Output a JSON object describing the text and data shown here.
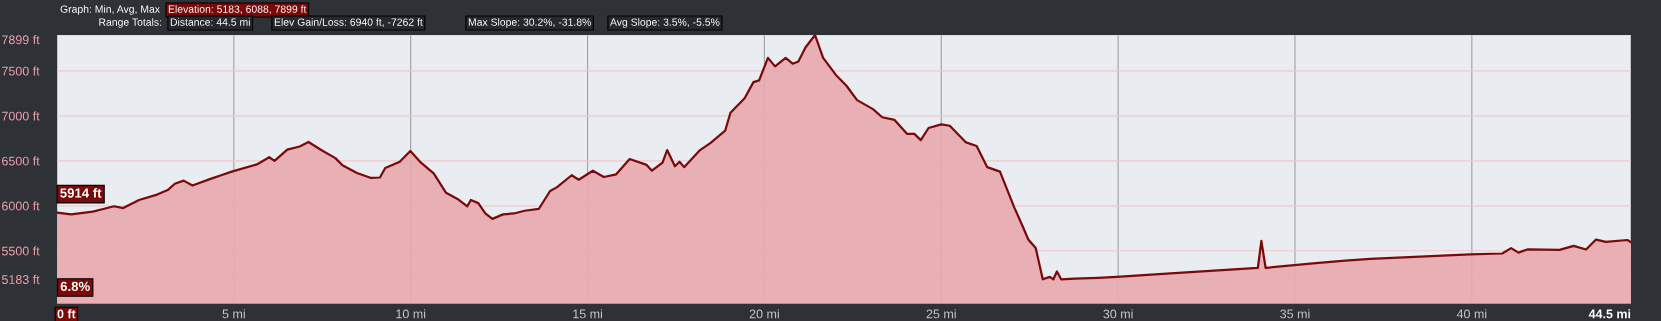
{
  "chart_data": {
    "type": "area",
    "x": [
      0,
      0.4,
      1.01,
      1.31,
      1.61,
      1.87,
      2.32,
      2.83,
      3.13,
      3.33,
      3.58,
      3.83,
      4.34,
      4.64,
      4.94,
      5.65,
      6.0,
      6.15,
      6.51,
      6.86,
      7.11,
      7.47,
      7.87,
      8.07,
      8.48,
      8.88,
      9.13,
      9.28,
      9.69,
      9.99,
      10.29,
      10.65,
      11.0,
      11.35,
      11.6,
      11.7,
      11.91,
      12.11,
      12.31,
      12.61,
      12.92,
      13.22,
      13.62,
      13.94,
      14.13,
      14.55,
      14.75,
      15.15,
      15.46,
      15.81,
      16.19,
      16.67,
      16.82,
      17.12,
      17.25,
      17.47,
      17.6,
      17.73,
      18.18,
      18.48,
      18.89,
      19.04,
      19.24,
      19.44,
      19.69,
      19.85,
      20.1,
      20.3,
      20.6,
      20.8,
      20.96,
      21.16,
      21.43,
      21.66,
      22.02,
      22.32,
      22.62,
      23.07,
      23.33,
      23.68,
      24.03,
      24.24,
      24.42,
      24.64,
      25.0,
      25.24,
      25.7,
      26.0,
      26.3,
      26.66,
      27.06,
      27.31,
      27.46,
      27.67,
      27.87,
      28.07,
      28.17,
      28.27,
      28.39,
      28.77,
      29.43,
      29.96,
      31.48,
      33.5,
      33.95,
      34.05,
      34.17,
      35.51,
      36.42,
      37.13,
      38.54,
      39.95,
      40.86,
      41.11,
      41.32,
      41.57,
      42.48,
      42.88,
      43.23,
      43.51,
      43.79,
      44.4,
      44.5
    ],
    "series": [
      {
        "color": "#7a0a0a",
        "values": [
          5925,
          5905,
          5935,
          5965,
          5995,
          5975,
          6065,
          6125,
          6175,
          6245,
          6280,
          6225,
          6300,
          6340,
          6380,
          6460,
          6540,
          6500,
          6625,
          6660,
          6710,
          6620,
          6530,
          6450,
          6365,
          6310,
          6315,
          6420,
          6490,
          6610,
          6480,
          6360,
          6145,
          6070,
          5995,
          6065,
          6030,
          5915,
          5855,
          5905,
          5915,
          5945,
          5965,
          6165,
          6205,
          6340,
          6290,
          6390,
          6320,
          6350,
          6520,
          6455,
          6390,
          6480,
          6620,
          6440,
          6490,
          6430,
          6620,
          6700,
          6835,
          7035,
          7115,
          7195,
          7375,
          7395,
          7645,
          7550,
          7645,
          7580,
          7605,
          7760,
          7899,
          7645,
          7455,
          7335,
          7175,
          7075,
          6985,
          6955,
          6800,
          6800,
          6730,
          6865,
          6905,
          6890,
          6705,
          6665,
          6430,
          6380,
          5985,
          5765,
          5625,
          5530,
          5183,
          5210,
          5183,
          5270,
          5183,
          5190,
          5200,
          5210,
          5250,
          5300,
          5310,
          5610,
          5310,
          5360,
          5390,
          5410,
          5435,
          5460,
          5470,
          5530,
          5480,
          5515,
          5510,
          5555,
          5515,
          5625,
          5600,
          5620,
          5595
        ]
      }
    ],
    "xlim": [
      0,
      44.5
    ],
    "ylim": [
      4913,
      7899
    ],
    "xticks": [
      {
        "value": 0,
        "label": "0 ft"
      },
      {
        "value": 5,
        "label": "5 mi"
      },
      {
        "value": 10,
        "label": "10 mi"
      },
      {
        "value": 15,
        "label": "15 mi"
      },
      {
        "value": 20,
        "label": "20 mi"
      },
      {
        "value": 25,
        "label": "25 mi"
      },
      {
        "value": 30,
        "label": "30 mi"
      },
      {
        "value": 35,
        "label": "35 mi"
      },
      {
        "value": 40,
        "label": "40 mi"
      },
      {
        "value": 44.5,
        "label": "44.5 mi"
      }
    ],
    "yticks": [
      {
        "value": 5183,
        "label": "5183 ft"
      },
      {
        "value": 5500,
        "label": "5500 ft"
      },
      {
        "value": 6000,
        "label": "6000 ft"
      },
      {
        "value": 6500,
        "label": "6500 ft"
      },
      {
        "value": 7000,
        "label": "7000 ft"
      },
      {
        "value": 7500,
        "label": "7500 ft"
      },
      {
        "value": 7899,
        "label": "7899 ft"
      }
    ],
    "grid": true,
    "annotations": [
      "Graph: Min, Avg, Max",
      "Elevation: 5183, 6088, 7899 ft",
      "Range Totals:",
      "Distance: 44.5 mi",
      "Elev Gain/Loss: 6940 ft, -7262 ft",
      "Max Slope: 30.2%, -31.8%",
      "Avg Slope: 3.5%, -5.5%",
      {
        "text": "5914 ft",
        "x": 0,
        "y": 5914
      },
      "6.8%"
    ]
  }
}
